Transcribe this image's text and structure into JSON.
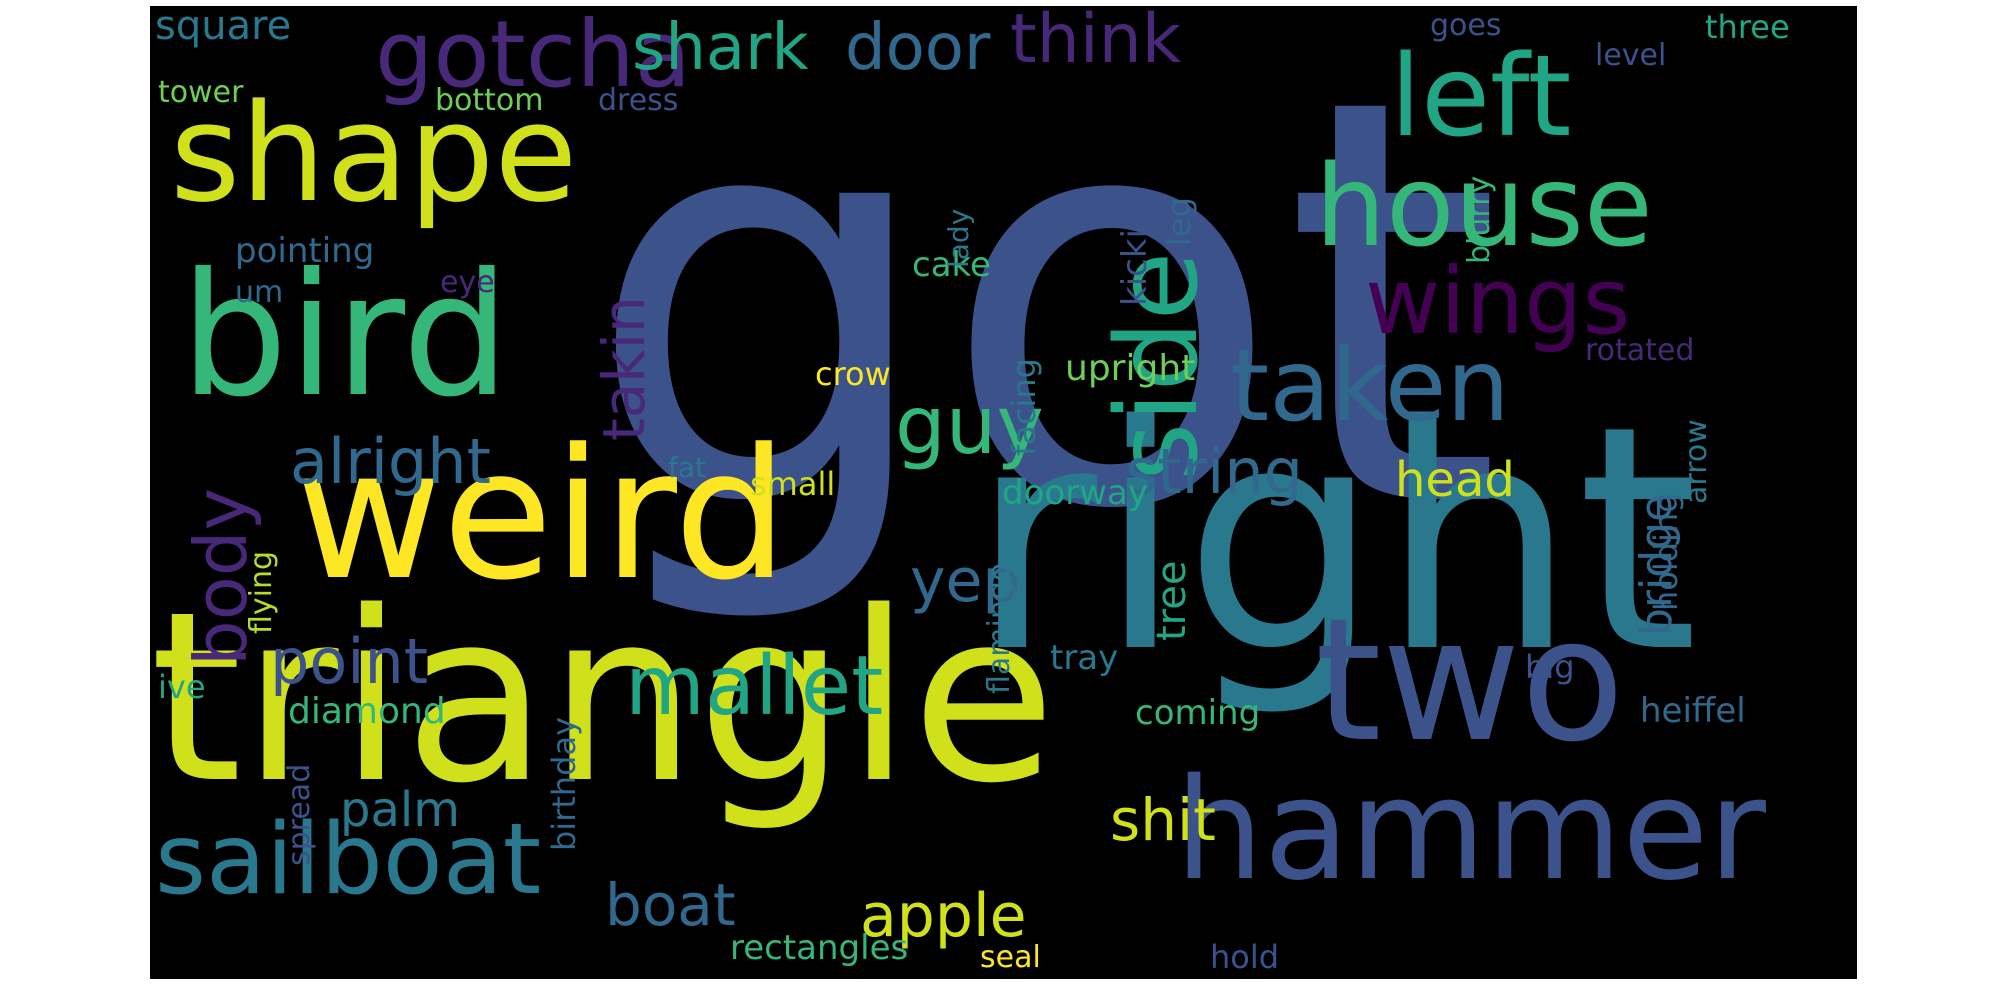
{
  "palette": {
    "background": "#000000",
    "canvas": "#ffffff",
    "yellow": "#fde725",
    "lime": "#d0e11c",
    "green": "#35b779",
    "teal_green": "#21a685",
    "teal": "#2a788e",
    "blue": "#3b528b",
    "slate": "#31688e",
    "purple": "#482878",
    "dark_purple": "#440154"
  },
  "words": [
    {
      "text": "got",
      "color": "#3b528b"
    },
    {
      "text": "right",
      "color": "#2a788e"
    },
    {
      "text": "triangle",
      "color": "#d0e11c"
    },
    {
      "text": "weird",
      "color": "#fde725"
    },
    {
      "text": "bird",
      "color": "#35b779"
    },
    {
      "text": "shape",
      "color": "#d0e11c"
    },
    {
      "text": "two",
      "color": "#3b528b"
    },
    {
      "text": "hammer",
      "color": "#3b528b"
    },
    {
      "text": "sailboat",
      "color": "#2a788e"
    },
    {
      "text": "house",
      "color": "#35b779"
    },
    {
      "text": "left",
      "color": "#21a685"
    },
    {
      "text": "side",
      "color": "#21a685"
    },
    {
      "text": "taken",
      "color": "#31688e"
    },
    {
      "text": "gotcha",
      "color": "#482878"
    },
    {
      "text": "wings",
      "color": "#440154"
    },
    {
      "text": "mallet",
      "color": "#21a685"
    },
    {
      "text": "guy",
      "color": "#35b779"
    },
    {
      "text": "shark",
      "color": "#21a685"
    },
    {
      "text": "door",
      "color": "#31688e"
    },
    {
      "text": "think",
      "color": "#482878"
    },
    {
      "text": "body",
      "color": "#482878"
    },
    {
      "text": "takin",
      "color": "#482878"
    },
    {
      "text": "alright",
      "color": "#31688e"
    },
    {
      "text": "string",
      "color": "#31688e"
    },
    {
      "text": "point",
      "color": "#3b528b"
    },
    {
      "text": "yep",
      "color": "#31688e"
    },
    {
      "text": "apple",
      "color": "#d0e11c"
    },
    {
      "text": "boat",
      "color": "#31688e"
    },
    {
      "text": "shit",
      "color": "#d0e11c"
    },
    {
      "text": "palm",
      "color": "#2a788e"
    },
    {
      "text": "head",
      "color": "#d0e11c"
    },
    {
      "text": "bridge",
      "color": "#31688e"
    },
    {
      "text": "tree",
      "color": "#21a685"
    },
    {
      "text": "square",
      "color": "#2a788e"
    },
    {
      "text": "tower",
      "color": "#6ece58"
    },
    {
      "text": "bottom",
      "color": "#6ece58"
    },
    {
      "text": "dress",
      "color": "#3b528b"
    },
    {
      "text": "goes",
      "color": "#3b528b"
    },
    {
      "text": "three",
      "color": "#21a685"
    },
    {
      "text": "level",
      "color": "#3b528b"
    },
    {
      "text": "pointing",
      "color": "#31688e"
    },
    {
      "text": "um",
      "color": "#31688e"
    },
    {
      "text": "eye",
      "color": "#482878"
    },
    {
      "text": "cake",
      "color": "#35b779"
    },
    {
      "text": "crow",
      "color": "#fde725"
    },
    {
      "text": "upright",
      "color": "#6ece58"
    },
    {
      "text": "kicking",
      "color": "#3b528b"
    },
    {
      "text": "leg",
      "color": "#31688e"
    },
    {
      "text": "lady",
      "color": "#2a788e"
    },
    {
      "text": "facing",
      "color": "#2a788e"
    },
    {
      "text": "blurry",
      "color": "#35b779"
    },
    {
      "text": "rotated",
      "color": "#482878"
    },
    {
      "text": "arrow",
      "color": "#2a788e"
    },
    {
      "text": "fat",
      "color": "#2a788e"
    },
    {
      "text": "small",
      "color": "#d0e11c"
    },
    {
      "text": "doorway",
      "color": "#21a685"
    },
    {
      "text": "flying",
      "color": "#b5de2b"
    },
    {
      "text": "flamingo",
      "color": "#2a788e"
    },
    {
      "text": "tray",
      "color": "#2a788e"
    },
    {
      "text": "holding",
      "color": "#31688e"
    },
    {
      "text": "big",
      "color": "#3b528b"
    },
    {
      "text": "heiffel",
      "color": "#31688e"
    },
    {
      "text": "diamond",
      "color": "#35b779"
    },
    {
      "text": "ive",
      "color": "#21a685"
    },
    {
      "text": "birthday",
      "color": "#31688e"
    },
    {
      "text": "coming",
      "color": "#35b779"
    },
    {
      "text": "spread",
      "color": "#3b528b"
    },
    {
      "text": "rectangles",
      "color": "#35b779"
    },
    {
      "text": "seal",
      "color": "#fde725"
    },
    {
      "text": "hold",
      "color": "#3b528b"
    }
  ]
}
